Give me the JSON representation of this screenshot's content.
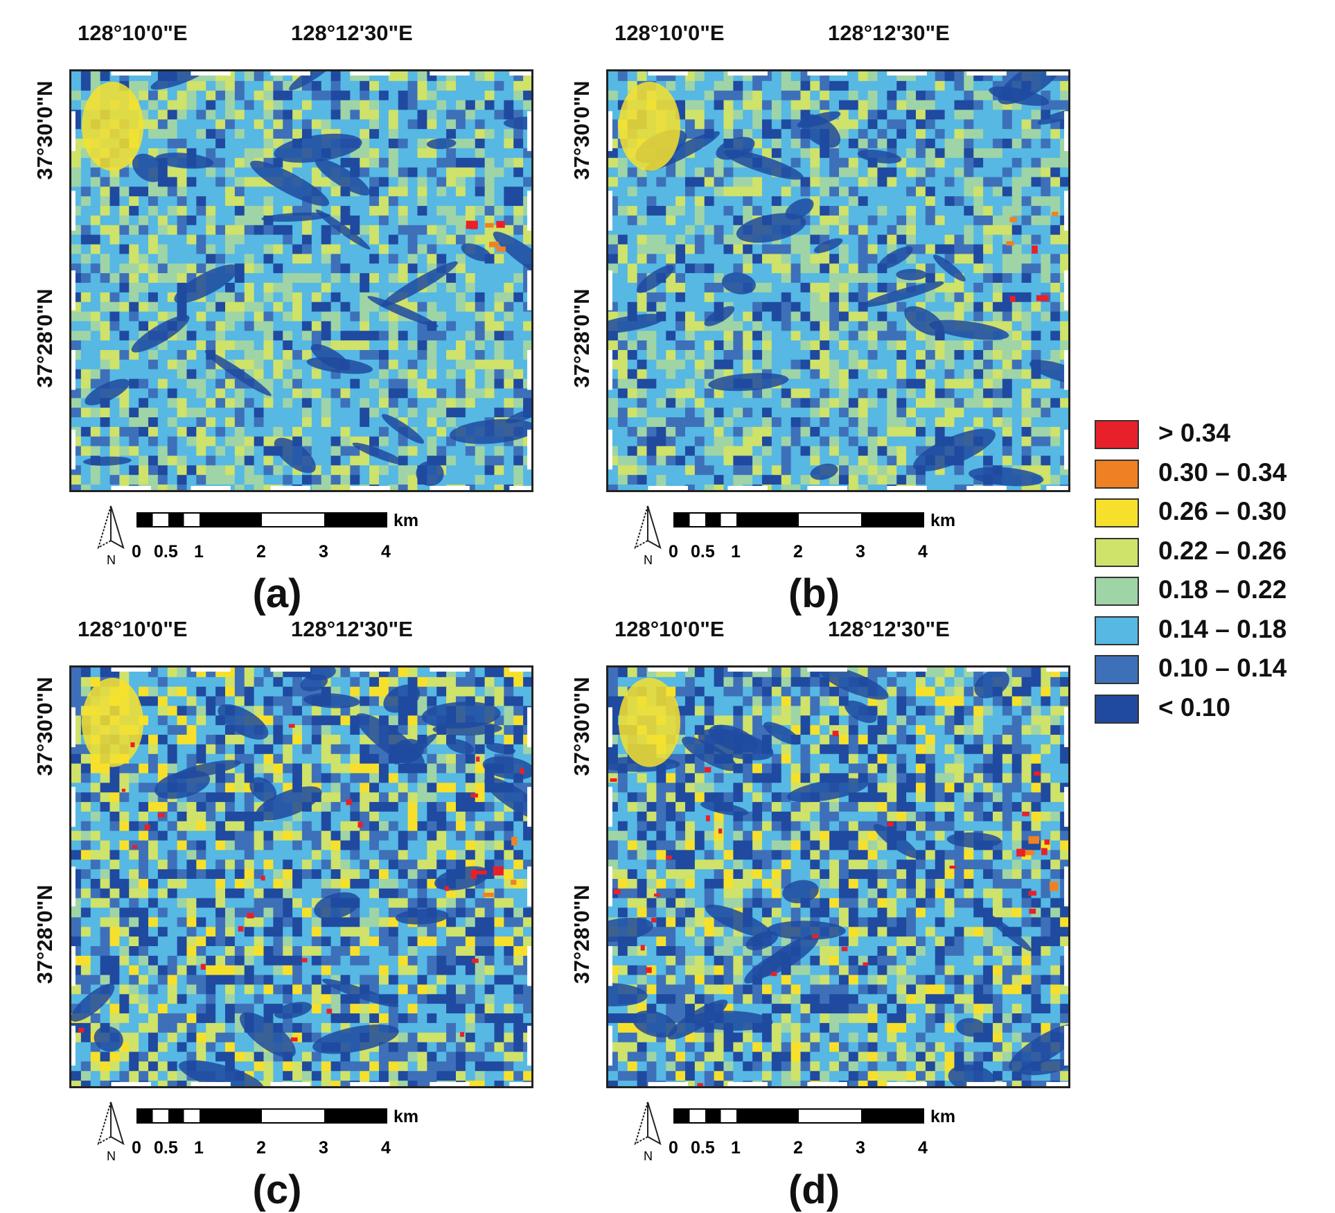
{
  "panels": [
    {
      "label": "(a)",
      "lon_ticks": [
        "128°10'0\"E",
        "128°12'30\"E"
      ],
      "lat_ticks": [
        "37°30'0\"N",
        "37°28'0\"N"
      ],
      "scale": {
        "ticks": [
          "0",
          "0.5",
          "1",
          "2",
          "3",
          "4"
        ],
        "unit": "km"
      },
      "north_label": "N"
    },
    {
      "label": "(b)",
      "lon_ticks": [
        "128°10'0\"E",
        "128°12'30\"E"
      ],
      "lat_ticks": [
        "37°30'0\"N",
        "37°28'0\"N"
      ],
      "scale": {
        "ticks": [
          "0",
          "0.5",
          "1",
          "2",
          "3",
          "4"
        ],
        "unit": "km"
      },
      "north_label": "N"
    },
    {
      "label": "(c)",
      "lon_ticks": [
        "128°10'0\"E",
        "128°12'30\"E"
      ],
      "lat_ticks": [
        "37°30'0\"N",
        "37°28'0\"N"
      ],
      "scale": {
        "ticks": [
          "0",
          "0.5",
          "1",
          "2",
          "3",
          "4"
        ],
        "unit": "km"
      },
      "north_label": "N"
    },
    {
      "label": "(d)",
      "lon_ticks": [
        "128°10'0\"E",
        "128°12'30\"E"
      ],
      "lat_ticks": [
        "37°30'0\"N",
        "37°28'0\"N"
      ],
      "scale": {
        "ticks": [
          "0",
          "0.5",
          "1",
          "2",
          "3",
          "4"
        ],
        "unit": "km"
      },
      "north_label": "N"
    }
  ],
  "legend": [
    {
      "label": "> 0.34",
      "color": "#e8202a"
    },
    {
      "label": "0.30 – 0.34",
      "color": "#f08024"
    },
    {
      "label": "0.26 – 0.30",
      "color": "#f7e02b"
    },
    {
      "label": "0.22 – 0.26",
      "color": "#cfe26a"
    },
    {
      "label": "0.18 – 0.22",
      "color": "#9fd4a6"
    },
    {
      "label": "0.14 – 0.18",
      "color": "#56b8e3"
    },
    {
      "label": "0.10 – 0.14",
      "color": "#3d70b9"
    },
    {
      "label": "< 0.10",
      "color": "#1f4aa0"
    }
  ]
}
